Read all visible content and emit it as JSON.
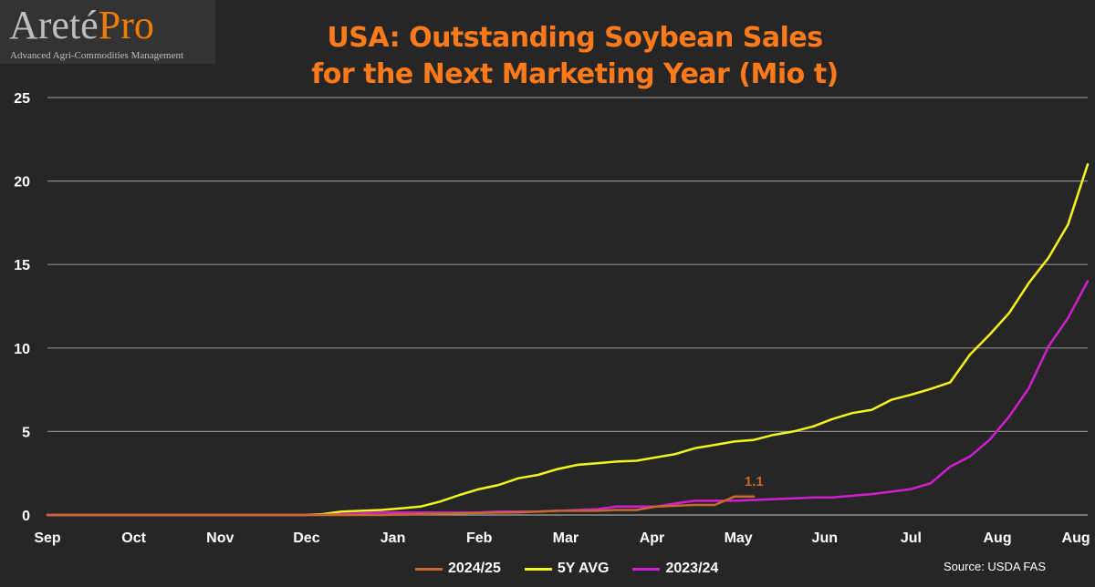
{
  "logo": {
    "brand_main": "Areté",
    "brand_accent": "Pro",
    "tagline": "Advanced Agri-Commodities Management"
  },
  "title_line1": "USA: Outstanding Soybean Sales",
  "title_line2": "for the Next Marketing Year (Mio t)",
  "source": "Source:  USDA FAS",
  "chart_data": {
    "type": "line",
    "title": "USA: Outstanding Soybean Sales for the Next Marketing Year (Mio t)",
    "xlabel": "",
    "ylabel": "",
    "ylim": [
      0,
      25
    ],
    "yticks": [
      0,
      5,
      10,
      15,
      20,
      25
    ],
    "months": [
      "Sep",
      "Oct",
      "Nov",
      "Dec",
      "Jan",
      "Feb",
      "Mar",
      "Apr",
      "May",
      "Jun",
      "Jul",
      "Aug",
      "Aug"
    ],
    "grid": "horizontal",
    "legend_position": "bottom",
    "annotations": [
      {
        "series": "2024/25",
        "week": 36,
        "label": "1.1"
      }
    ],
    "series": [
      {
        "name": "2024/25",
        "color": "#c8682a",
        "values": [
          0,
          0,
          0,
          0,
          0,
          0,
          0,
          0,
          0,
          0,
          0,
          0,
          0,
          0,
          0,
          0,
          0,
          0,
          0.02,
          0.05,
          0.08,
          0.1,
          0.12,
          0.14,
          0.16,
          0.2,
          0.25,
          0.25,
          0.25,
          0.3,
          0.3,
          0.5,
          0.55,
          0.6,
          0.6,
          1.1,
          1.1
        ]
      },
      {
        "name": "5Y AVG",
        "color": "#f5f51e",
        "values": [
          0,
          0,
          0,
          0,
          0,
          0,
          0,
          0,
          0,
          0,
          0,
          0,
          0,
          0,
          0.05,
          0.2,
          0.25,
          0.3,
          0.4,
          0.5,
          0.8,
          1.2,
          1.55,
          1.8,
          2.2,
          2.4,
          2.75,
          3.0,
          3.1,
          3.2,
          3.25,
          3.45,
          3.65,
          4.0,
          4.2,
          4.4,
          4.5,
          4.8,
          5.0,
          5.3,
          5.75,
          6.1,
          6.3,
          6.9,
          7.2,
          7.55,
          7.95,
          9.6,
          10.8,
          12.1,
          13.9,
          15.4,
          17.4,
          21.0
        ]
      },
      {
        "name": "2023/24",
        "color": "#d21ed2",
        "values": [
          0,
          0,
          0,
          0,
          0,
          0,
          0,
          0,
          0,
          0,
          0,
          0,
          0,
          0,
          0,
          0.05,
          0.1,
          0.15,
          0.15,
          0.15,
          0.15,
          0.15,
          0.15,
          0.2,
          0.2,
          0.2,
          0.25,
          0.3,
          0.35,
          0.5,
          0.5,
          0.5,
          0.7,
          0.85,
          0.85,
          0.85,
          0.9,
          0.95,
          1.0,
          1.05,
          1.05,
          1.15,
          1.25,
          1.4,
          1.55,
          1.9,
          2.9,
          3.5,
          4.5,
          5.9,
          7.6,
          10.1,
          11.8,
          14.0
        ]
      }
    ]
  }
}
